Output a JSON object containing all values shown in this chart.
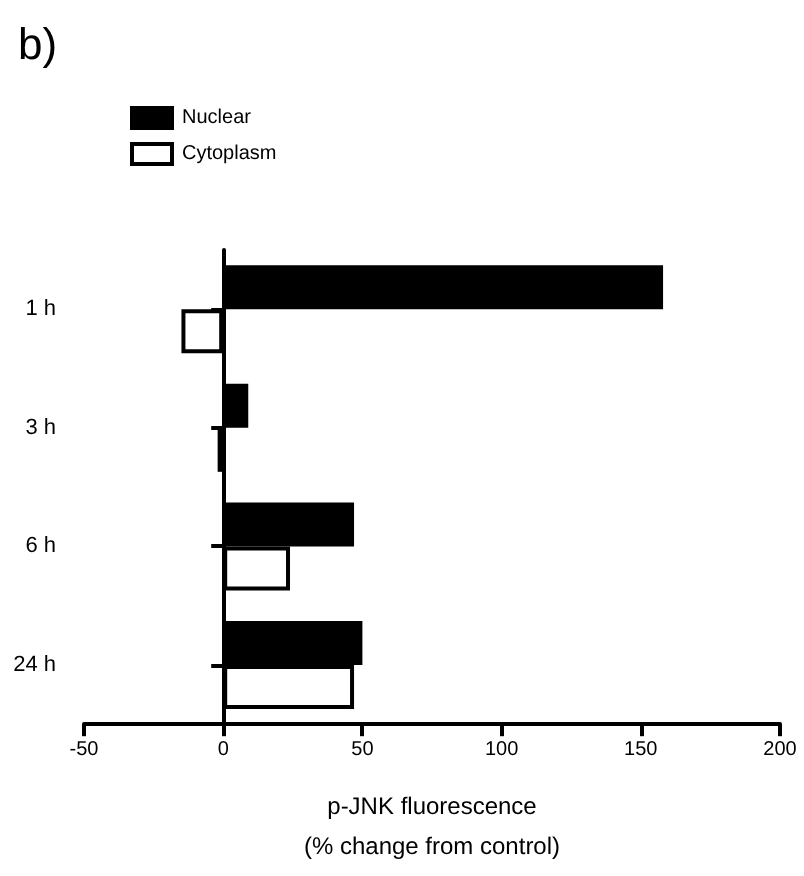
{
  "chart_data": {
    "type": "bar",
    "title": "b)",
    "orientation": "horizontal",
    "categories": [
      "1 h",
      "3 h",
      "6 h",
      "24 h"
    ],
    "series": [
      {
        "name": "Nuclear",
        "color": "#000000",
        "values": [
          158,
          9,
          47,
          50
        ]
      },
      {
        "name": "Cytoplasm",
        "color": "#ffffff",
        "values": [
          -15,
          -2,
          24,
          47
        ]
      }
    ],
    "xlabel": "p-JNK fluorescence\n(% change from control)",
    "xlim": [
      -50,
      200
    ],
    "xticks": [
      -50,
      0,
      50,
      100,
      150,
      200
    ],
    "legend": "top left"
  }
}
